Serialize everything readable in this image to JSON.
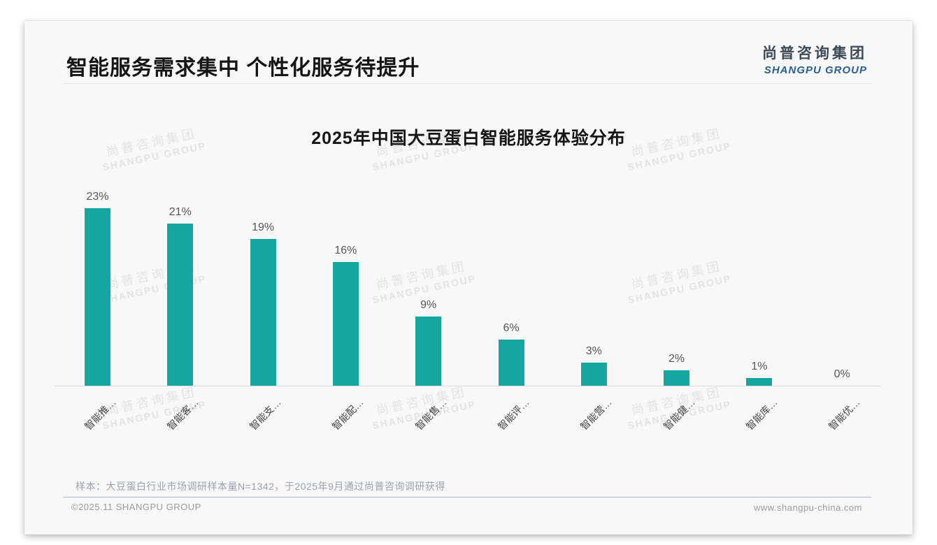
{
  "page": {
    "header_title": "智能服务需求集中 个性化服务待提升",
    "logo": {
      "cn": "尚普咨询集团",
      "en": "SHANGPU GROUP"
    },
    "watermark": {
      "cn": "尚普咨询集团",
      "en": "SHANGPU GROUP"
    },
    "footnote": "样本：大豆蛋白行业市场调研样本量N=1342，于2025年9月通过尚普咨询调研获得",
    "footer_left": "©2025.11 SHANGPU GROUP",
    "footer_right": "www.shangpu-china.com"
  },
  "chart_data": {
    "type": "bar",
    "title": "2025年中国大豆蛋白智能服务体验分布",
    "categories": [
      "智能推…",
      "智能客…",
      "智能支…",
      "智能配…",
      "智能售…",
      "智能评…",
      "智能营…",
      "智能健…",
      "智能库…",
      "智能优…"
    ],
    "values": [
      23,
      21,
      19,
      16,
      9,
      6,
      3,
      2,
      1,
      0
    ],
    "value_labels": [
      "23%",
      "21%",
      "19%",
      "16%",
      "9%",
      "6%",
      "3%",
      "2%",
      "1%",
      "0%"
    ],
    "unit": "%",
    "xlabel": "",
    "ylabel": "",
    "ylim": [
      0,
      25
    ],
    "grid": false,
    "legend": null,
    "bar_color": "#14A7A1",
    "value_label_color": "#565656",
    "x_label_rotation": -45
  }
}
